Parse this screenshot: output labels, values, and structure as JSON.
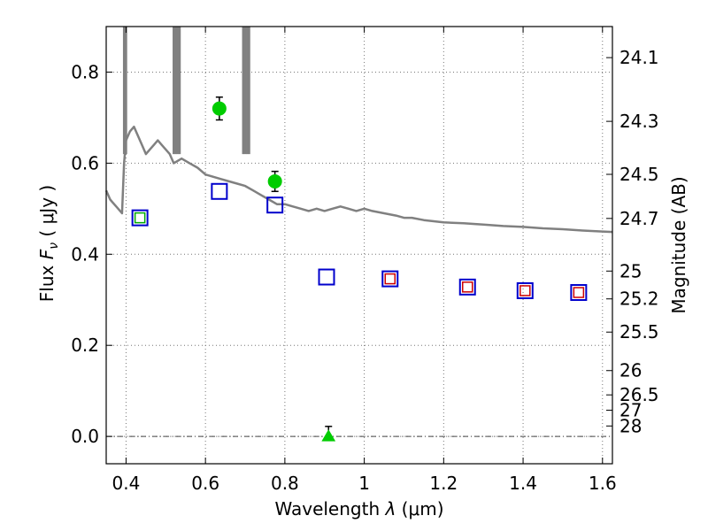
{
  "chart_data": {
    "type": "scatter",
    "title": "",
    "xlabel": "Wavelength  λ (μm)",
    "ylabel": "Flux  F_ν  ( μJy )",
    "ylabel_parts": {
      "prefix": "Flux ",
      "symbol": "F",
      "subscript": "ν",
      "suffix": "  ( μJy )"
    },
    "xlabel_parts": {
      "prefix": "Wavelength  ",
      "symbol": "λ",
      "suffix": " (μm)"
    },
    "y2label": "Magnitude (AB)",
    "xlim": [
      0.35,
      1.625
    ],
    "ylim": [
      -0.06,
      0.9
    ],
    "grid": true,
    "x_ticks": [
      0.4,
      0.6,
      0.8,
      1.0,
      1.2,
      1.4,
      1.6
    ],
    "x_tick_labels": [
      "0.4",
      "0.6",
      "0.8",
      "1",
      "1.2",
      "1.4",
      "1.6"
    ],
    "y_ticks": [
      0.0,
      0.2,
      0.4,
      0.6,
      0.8
    ],
    "y_tick_labels": [
      "0.0",
      "0.2",
      "0.4",
      "0.6",
      "0.8"
    ],
    "mag_ticks": [
      {
        "value": 24.1,
        "label": "24.1"
      },
      {
        "value": 24.3,
        "label": "24.3"
      },
      {
        "value": 24.5,
        "label": "24.5"
      },
      {
        "value": 24.7,
        "label": "24.7"
      },
      {
        "value": 25.0,
        "label": "25"
      },
      {
        "value": 25.2,
        "label": "25.2"
      },
      {
        "value": 25.5,
        "label": "25.5"
      },
      {
        "value": 26.0,
        "label": "26"
      },
      {
        "value": 26.5,
        "label": "26.5"
      },
      {
        "value": 27.0,
        "label": "27"
      },
      {
        "value": 28.0,
        "label": "28"
      }
    ],
    "series": [
      {
        "kind": "sed-line",
        "color": "#808080",
        "points": [
          [
            0.35,
            0.54
          ],
          [
            0.36,
            0.52
          ],
          [
            0.37,
            0.51
          ],
          [
            0.38,
            0.5
          ],
          [
            0.39,
            0.49
          ],
          [
            0.395,
            0.6
          ],
          [
            0.4,
            0.65
          ],
          [
            0.41,
            0.67
          ],
          [
            0.42,
            0.68
          ],
          [
            0.43,
            0.66
          ],
          [
            0.44,
            0.64
          ],
          [
            0.45,
            0.62
          ],
          [
            0.46,
            0.63
          ],
          [
            0.47,
            0.64
          ],
          [
            0.48,
            0.65
          ],
          [
            0.49,
            0.64
          ],
          [
            0.5,
            0.63
          ],
          [
            0.51,
            0.62
          ],
          [
            0.52,
            0.6
          ],
          [
            0.54,
            0.61
          ],
          [
            0.56,
            0.6
          ],
          [
            0.58,
            0.59
          ],
          [
            0.6,
            0.575
          ],
          [
            0.62,
            0.57
          ],
          [
            0.64,
            0.565
          ],
          [
            0.66,
            0.56
          ],
          [
            0.68,
            0.555
          ],
          [
            0.7,
            0.55
          ],
          [
            0.72,
            0.54
          ],
          [
            0.74,
            0.53
          ],
          [
            0.76,
            0.52
          ],
          [
            0.78,
            0.51
          ],
          [
            0.8,
            0.51
          ],
          [
            0.82,
            0.505
          ],
          [
            0.84,
            0.5
          ],
          [
            0.86,
            0.495
          ],
          [
            0.88,
            0.5
          ],
          [
            0.9,
            0.495
          ],
          [
            0.92,
            0.5
          ],
          [
            0.94,
            0.505
          ],
          [
            0.96,
            0.5
          ],
          [
            0.98,
            0.495
          ],
          [
            1.0,
            0.5
          ],
          [
            1.02,
            0.495
          ],
          [
            1.05,
            0.49
          ],
          [
            1.08,
            0.485
          ],
          [
            1.1,
            0.48
          ],
          [
            1.12,
            0.48
          ],
          [
            1.15,
            0.475
          ],
          [
            1.2,
            0.47
          ],
          [
            1.25,
            0.468
          ],
          [
            1.3,
            0.465
          ],
          [
            1.35,
            0.462
          ],
          [
            1.4,
            0.46
          ],
          [
            1.45,
            0.457
          ],
          [
            1.5,
            0.455
          ],
          [
            1.55,
            0.452
          ],
          [
            1.6,
            0.45
          ],
          [
            1.625,
            0.449
          ]
        ]
      },
      {
        "kind": "sed-spikes",
        "color": "#808080",
        "points": [
          [
            0.395,
            0.9
          ],
          [
            0.4,
            0.9
          ],
          [
            0.52,
            0.9
          ],
          [
            0.525,
            0.9
          ],
          [
            0.53,
            0.9
          ],
          [
            0.535,
            0.9
          ],
          [
            0.695,
            0.9
          ],
          [
            0.7,
            0.9
          ],
          [
            0.705,
            0.9
          ],
          [
            0.71,
            0.9
          ]
        ]
      },
      {
        "kind": "open-square",
        "color": "#0000cc",
        "points": [
          [
            0.435,
            0.48
          ],
          [
            0.635,
            0.538
          ],
          [
            0.775,
            0.508
          ],
          [
            0.905,
            0.35
          ],
          [
            1.065,
            0.346
          ],
          [
            1.26,
            0.328
          ],
          [
            1.405,
            0.32
          ],
          [
            1.54,
            0.316
          ]
        ]
      },
      {
        "kind": "open-square-inner",
        "color": "#cc0000",
        "points": [
          [
            1.065,
            0.346
          ],
          [
            1.26,
            0.328
          ],
          [
            1.405,
            0.32
          ],
          [
            1.54,
            0.316
          ]
        ]
      },
      {
        "kind": "open-square-inner",
        "color": "#00aa00",
        "points": [
          [
            0.435,
            0.48
          ]
        ]
      },
      {
        "kind": "filled-circle",
        "color": "#00cc00",
        "points": [
          [
            0.635,
            0.72,
            0.025
          ],
          [
            0.775,
            0.56,
            0.022
          ]
        ]
      },
      {
        "kind": "filled-triangle",
        "color": "#00cc00",
        "points": [
          [
            0.91,
            0.0,
            0.022
          ]
        ]
      }
    ]
  }
}
